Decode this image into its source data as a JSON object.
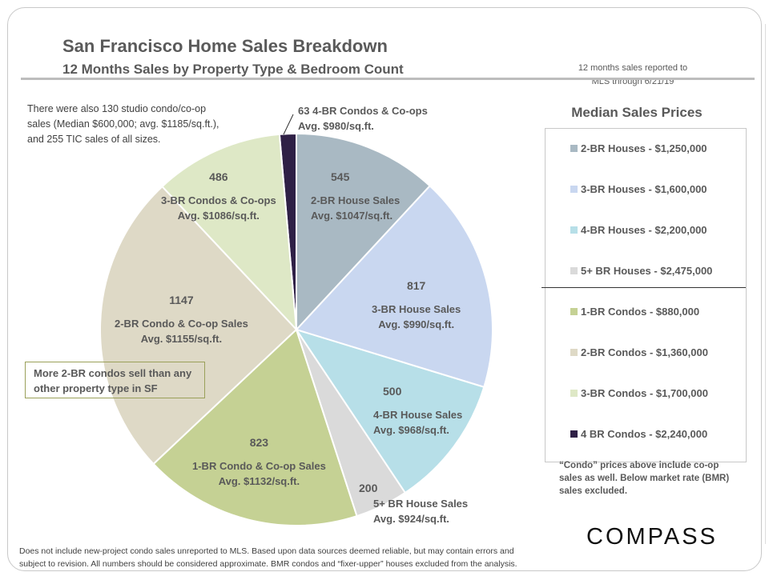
{
  "header": {
    "title": "San Francisco Home Sales Breakdown",
    "subtitle": "12 Months  Sales by Property Type & Bedroom Count",
    "note_line1": "12 months sales reported to",
    "note_line2": "MLS through 6/21/19"
  },
  "notes": {
    "studio_line1": "There were also 130  studio condo/co-op",
    "studio_line2": "sales (Median $600,000;  avg. $1185/sq.ft.),",
    "studio_line3": "and 255  TIC sales of all sizes.",
    "callout": "More 2-BR condos sell than any other property type in SF",
    "condo_note_line1": "“Condo” prices above include co-op",
    "condo_note_line2": "sales as well. Below market rate (BMR)",
    "condo_note_line3": "sales excluded."
  },
  "chart_data": {
    "type": "pie",
    "start": "12 o'clock",
    "direction": "clockwise",
    "slices": [
      {
        "label": "2-BR House Sales",
        "value": 545,
        "avg": "Avg. $1047/sq.ft.",
        "color": "#a9b9c3"
      },
      {
        "label": "3-BR House Sales",
        "value": 817,
        "avg": "Avg. $990/sq.ft.",
        "color": "#c9d7f0"
      },
      {
        "label": "4-BR House Sales",
        "value": 500,
        "avg": "Avg. $968/sq.ft.",
        "color": "#b7dfe8"
      },
      {
        "label": "5+ BR House Sales",
        "value": 200,
        "avg": "Avg. $924/sq.ft.",
        "color": "#dadada"
      },
      {
        "label": "1-BR Condo & Co-op Sales",
        "value": 823,
        "avg": "Avg. $1132/sq.ft.",
        "color": "#c5d194"
      },
      {
        "label": "2-BR Condo & Co-op Sales",
        "value": 1147,
        "avg": "Avg. $1155/sq.ft.",
        "color": "#ded9c6"
      },
      {
        "label": "3-BR Condos & Co-ops",
        "value": 486,
        "avg": "Avg. $1086/sq.ft.",
        "color": "#dee8c6"
      },
      {
        "label": "4-BR Condos & Co-ops",
        "value": 63,
        "avg": "Avg. $980/sq.ft.",
        "color": "#2f2046"
      }
    ]
  },
  "legend": {
    "title": "Median Sales Prices",
    "items": [
      {
        "label": "2-BR Houses - $1,250,000",
        "color": "#a9b9c3"
      },
      {
        "label": "3-BR Houses - $1,600,000",
        "color": "#c9d7f0"
      },
      {
        "label": "4-BR Houses - $2,200,000",
        "color": "#b7dfe8"
      },
      {
        "label": "5+ BR Houses - $2,475,000",
        "color": "#dadada"
      },
      {
        "label": "1-BR Condos - $880,000",
        "color": "#c5d194"
      },
      {
        "label": "2-BR Condos - $1,360,000",
        "color": "#ded9c6"
      },
      {
        "label": "3-BR Condos - $1,700,000",
        "color": "#dee8c6"
      },
      {
        "label": "4 BR Condos - $2,240,000",
        "color": "#2f2046"
      }
    ]
  },
  "footer": {
    "line1": "Does not include new-project condo sales unreported to MLS.  Based upon data sources deemed reliable, but may contain errors and",
    "line2": "subject to revision. All numbers should be considered approximate. BMR condos and “fixer-upper” houses excluded from the analysis."
  },
  "logo": "COMPASS"
}
